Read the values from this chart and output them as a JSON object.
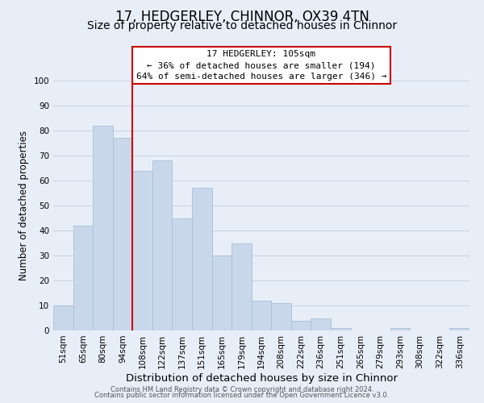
{
  "title": "17, HEDGERLEY, CHINNOR, OX39 4TN",
  "subtitle": "Size of property relative to detached houses in Chinnor",
  "xlabel": "Distribution of detached houses by size in Chinnor",
  "ylabel": "Number of detached properties",
  "bar_labels": [
    "51sqm",
    "65sqm",
    "80sqm",
    "94sqm",
    "108sqm",
    "122sqm",
    "137sqm",
    "151sqm",
    "165sqm",
    "179sqm",
    "194sqm",
    "208sqm",
    "222sqm",
    "236sqm",
    "251sqm",
    "265sqm",
    "279sqm",
    "293sqm",
    "308sqm",
    "322sqm",
    "336sqm"
  ],
  "bar_values": [
    10,
    42,
    82,
    77,
    64,
    68,
    45,
    57,
    30,
    35,
    12,
    11,
    4,
    5,
    1,
    0,
    0,
    1,
    0,
    0,
    1
  ],
  "bar_color": "#c8d8ea",
  "bar_edgecolor": "#a8c0d6",
  "vline_x_index": 4,
  "vline_color": "#cc0000",
  "annotation_title": "17 HEDGERLEY: 105sqm",
  "annotation_line1": "← 36% of detached houses are smaller (194)",
  "annotation_line2": "64% of semi-detached houses are larger (346) →",
  "annotation_box_edgecolor": "#cc0000",
  "annotation_box_facecolor": "#ffffff",
  "ylim": [
    0,
    100
  ],
  "yticks": [
    0,
    10,
    20,
    30,
    40,
    50,
    60,
    70,
    80,
    90,
    100
  ],
  "grid_color": "#c8d4e4",
  "background_color": "#e8eef8",
  "plot_bg_color": "#e8eef8",
  "footer_line1": "Contains HM Land Registry data © Crown copyright and database right 2024.",
  "footer_line2": "Contains public sector information licensed under the Open Government Licence v3.0.",
  "title_fontsize": 12,
  "subtitle_fontsize": 10,
  "xlabel_fontsize": 9.5,
  "ylabel_fontsize": 8.5,
  "tick_fontsize": 7.5,
  "annotation_fontsize": 8,
  "footer_fontsize": 6
}
